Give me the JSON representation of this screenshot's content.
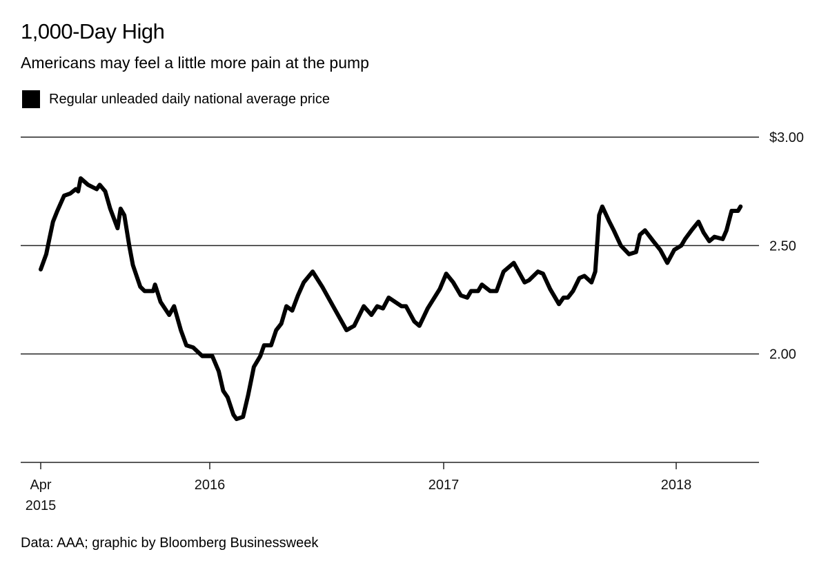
{
  "title": "1,000-Day High",
  "subtitle": "Americans may feel a little more pain at the pump",
  "footer": "Data: AAA; graphic by Bloomberg Businessweek",
  "chart_data": {
    "type": "line",
    "title": "1,000-Day High",
    "subtitle": "Americans may feel a little more pain at the pump",
    "xlabel": "",
    "ylabel": "",
    "ylim": [
      1.5,
      3.0
    ],
    "grid": true,
    "legend_position": "top-left",
    "y_ticks": [
      {
        "value": 3.0,
        "label": "$3.00"
      },
      {
        "value": 2.5,
        "label": "2.50"
      },
      {
        "value": 2.0,
        "label": "2.00"
      }
    ],
    "x_ticks": [
      {
        "date": "2015-04-01",
        "label": "Apr",
        "label2": "2015"
      },
      {
        "date": "2016-01-01",
        "label": "2016"
      },
      {
        "date": "2017-01-01",
        "label": "2017"
      },
      {
        "date": "2018-01-01",
        "label": "2018"
      }
    ],
    "series": [
      {
        "name": "Regular unleaded daily national average price",
        "color": "#000000",
        "points": [
          [
            "2015-04-01",
            2.39
          ],
          [
            "2015-04-10",
            2.46
          ],
          [
            "2015-04-15",
            2.53
          ],
          [
            "2015-04-21",
            2.61
          ],
          [
            "2015-04-28",
            2.66
          ],
          [
            "2015-05-09",
            2.73
          ],
          [
            "2015-05-19",
            2.74
          ],
          [
            "2015-05-28",
            2.76
          ],
          [
            "2015-06-01",
            2.75
          ],
          [
            "2015-06-05",
            2.81
          ],
          [
            "2015-06-17",
            2.78
          ],
          [
            "2015-07-01",
            2.76
          ],
          [
            "2015-07-06",
            2.78
          ],
          [
            "2015-07-15",
            2.75
          ],
          [
            "2015-07-23",
            2.67
          ],
          [
            "2015-08-04",
            2.58
          ],
          [
            "2015-08-09",
            2.67
          ],
          [
            "2015-08-15",
            2.64
          ],
          [
            "2015-08-23",
            2.5
          ],
          [
            "2015-08-29",
            2.41
          ],
          [
            "2015-09-10",
            2.31
          ],
          [
            "2015-09-17",
            2.29
          ],
          [
            "2015-10-01",
            2.29
          ],
          [
            "2015-10-04",
            2.32
          ],
          [
            "2015-10-13",
            2.24
          ],
          [
            "2015-10-27",
            2.18
          ],
          [
            "2015-11-04",
            2.22
          ],
          [
            "2015-11-15",
            2.11
          ],
          [
            "2015-11-24",
            2.04
          ],
          [
            "2015-12-05",
            2.03
          ],
          [
            "2015-12-20",
            1.99
          ],
          [
            "2016-01-05",
            1.99
          ],
          [
            "2016-01-15",
            1.92
          ],
          [
            "2016-01-22",
            1.83
          ],
          [
            "2016-01-29",
            1.8
          ],
          [
            "2016-02-07",
            1.72
          ],
          [
            "2016-02-12",
            1.7
          ],
          [
            "2016-02-22",
            1.71
          ],
          [
            "2016-03-01",
            1.81
          ],
          [
            "2016-03-10",
            1.94
          ],
          [
            "2016-03-20",
            1.99
          ],
          [
            "2016-03-26",
            2.04
          ],
          [
            "2016-04-06",
            2.04
          ],
          [
            "2016-04-14",
            2.11
          ],
          [
            "2016-04-22",
            2.14
          ],
          [
            "2016-04-30",
            2.22
          ],
          [
            "2016-05-09",
            2.2
          ],
          [
            "2016-05-18",
            2.27
          ],
          [
            "2016-05-27",
            2.33
          ],
          [
            "2016-06-10",
            2.38
          ],
          [
            "2016-06-25",
            2.31
          ],
          [
            "2016-07-12",
            2.22
          ],
          [
            "2016-08-02",
            2.11
          ],
          [
            "2016-08-14",
            2.13
          ],
          [
            "2016-08-29",
            2.22
          ],
          [
            "2016-09-10",
            2.18
          ],
          [
            "2016-09-19",
            2.22
          ],
          [
            "2016-09-28",
            2.21
          ],
          [
            "2016-10-07",
            2.26
          ],
          [
            "2016-10-27",
            2.22
          ],
          [
            "2016-11-03",
            2.22
          ],
          [
            "2016-11-16",
            2.15
          ],
          [
            "2016-11-24",
            2.13
          ],
          [
            "2016-12-07",
            2.21
          ],
          [
            "2016-12-26",
            2.3
          ],
          [
            "2017-01-05",
            2.37
          ],
          [
            "2017-01-16",
            2.33
          ],
          [
            "2017-01-28",
            2.27
          ],
          [
            "2017-02-07",
            2.26
          ],
          [
            "2017-02-13",
            2.29
          ],
          [
            "2017-02-24",
            2.29
          ],
          [
            "2017-03-02",
            2.32
          ],
          [
            "2017-03-15",
            2.29
          ],
          [
            "2017-03-25",
            2.29
          ],
          [
            "2017-04-05",
            2.38
          ],
          [
            "2017-04-21",
            2.42
          ],
          [
            "2017-05-08",
            2.33
          ],
          [
            "2017-05-15",
            2.34
          ],
          [
            "2017-05-29",
            2.38
          ],
          [
            "2017-06-06",
            2.37
          ],
          [
            "2017-06-17",
            2.3
          ],
          [
            "2017-07-01",
            2.23
          ],
          [
            "2017-07-08",
            2.26
          ],
          [
            "2017-07-15",
            2.26
          ],
          [
            "2017-07-23",
            2.29
          ],
          [
            "2017-08-02",
            2.35
          ],
          [
            "2017-08-10",
            2.36
          ],
          [
            "2017-08-21",
            2.33
          ],
          [
            "2017-08-27",
            2.38
          ],
          [
            "2017-09-02",
            2.64
          ],
          [
            "2017-09-07",
            2.68
          ],
          [
            "2017-09-18",
            2.61
          ],
          [
            "2017-09-25",
            2.57
          ],
          [
            "2017-10-06",
            2.5
          ],
          [
            "2017-10-19",
            2.46
          ],
          [
            "2017-10-30",
            2.47
          ],
          [
            "2017-11-05",
            2.55
          ],
          [
            "2017-11-13",
            2.57
          ],
          [
            "2017-11-26",
            2.52
          ],
          [
            "2017-12-07",
            2.48
          ],
          [
            "2017-12-18",
            2.42
          ],
          [
            "2017-12-29",
            2.48
          ],
          [
            "2018-01-09",
            2.5
          ],
          [
            "2018-01-15",
            2.53
          ],
          [
            "2018-01-25",
            2.57
          ],
          [
            "2018-02-05",
            2.61
          ],
          [
            "2018-02-13",
            2.56
          ],
          [
            "2018-02-22",
            2.52
          ],
          [
            "2018-03-02",
            2.54
          ],
          [
            "2018-03-15",
            2.53
          ],
          [
            "2018-03-21",
            2.57
          ],
          [
            "2018-03-29",
            2.66
          ],
          [
            "2018-04-08",
            2.66
          ],
          [
            "2018-04-12",
            2.68
          ]
        ]
      }
    ]
  }
}
